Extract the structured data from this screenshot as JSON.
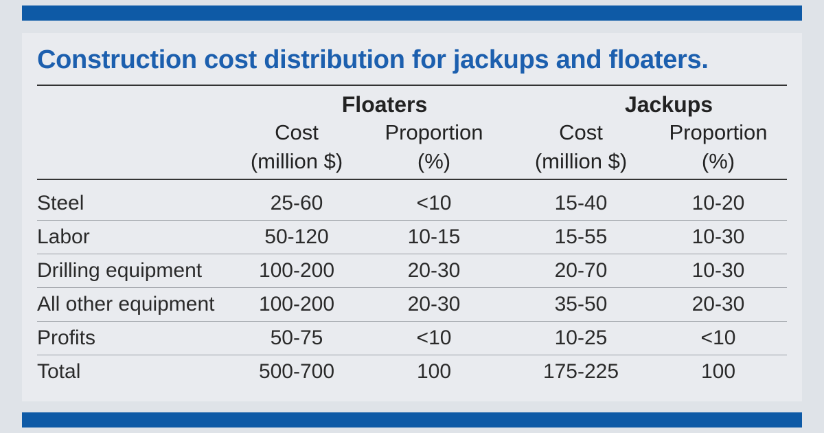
{
  "title": "Construction cost distribution for jackups and floaters.",
  "groups": {
    "floaters": "Floaters",
    "jackups": "Jackups"
  },
  "columns": {
    "cost_line1": "Cost",
    "cost_line2": "(million $)",
    "prop_line1": "Proportion",
    "prop_line2": "(%)"
  },
  "rows": [
    {
      "label": "Steel",
      "f_cost": "25-60",
      "f_prop": "<10",
      "j_cost": "15-40",
      "j_prop": "10-20"
    },
    {
      "label": "Labor",
      "f_cost": "50-120",
      "f_prop": "10-15",
      "j_cost": "15-55",
      "j_prop": "10-30"
    },
    {
      "label": "Drilling equipment",
      "f_cost": "100-200",
      "f_prop": "20-30",
      "j_cost": "20-70",
      "j_prop": "10-30"
    },
    {
      "label": "All other equipment",
      "f_cost": "100-200",
      "f_prop": "20-30",
      "j_cost": "35-50",
      "j_prop": "20-30"
    },
    {
      "label": "Profits",
      "f_cost": "50-75",
      "f_prop": "<10",
      "j_cost": "10-25",
      "j_prop": "<10"
    },
    {
      "label": "Total",
      "f_cost": "500-700",
      "f_prop": "100",
      "j_cost": "175-225",
      "j_prop": "100"
    }
  ],
  "colors": {
    "accent_bar": "#0e5aa6",
    "title": "#1c5fae"
  }
}
